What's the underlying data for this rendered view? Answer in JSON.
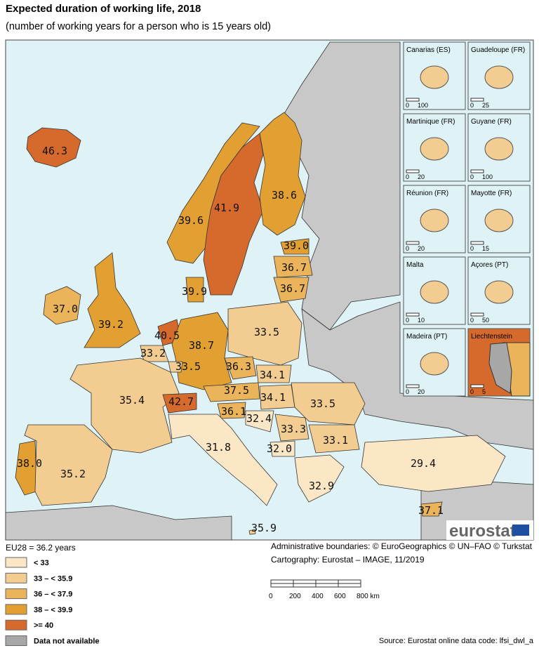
{
  "header": {
    "title": "Expected duration of working life, 2018",
    "subtitle": "(number of working years for a person who is 15 years old)"
  },
  "map": {
    "labels": [
      "46.3",
      "41.9",
      "38.6",
      "39.6",
      "39.0",
      "36.7",
      "36.7",
      "39.9",
      "37.0",
      "39.2",
      "40.5",
      "33.2",
      "38.7",
      "33.5",
      "33.5",
      "36.3",
      "34.1",
      "35.4",
      "42.7",
      "37.5",
      "34.1",
      "33.5",
      "36.1",
      "32.4",
      "33.3",
      "33.1",
      "32.0",
      "31.8",
      "38.0",
      "35.2",
      "29.4",
      "32.9",
      "37.1",
      "35.9"
    ]
  },
  "insets": [
    {
      "name": "Canarias (ES)",
      "scale": [
        "0",
        "100"
      ]
    },
    {
      "name": "Guadeloupe (FR)",
      "scale": [
        "0",
        "25"
      ]
    },
    {
      "name": "Martinique (FR)",
      "scale": [
        "0",
        "20"
      ]
    },
    {
      "name": "Guyane (FR)",
      "scale": [
        "0",
        "100"
      ]
    },
    {
      "name": "Réunion (FR)",
      "scale": [
        "0",
        "20"
      ]
    },
    {
      "name": "Mayotte (FR)",
      "scale": [
        "0",
        "15"
      ]
    },
    {
      "name": "Malta",
      "scale": [
        "0",
        "10"
      ]
    },
    {
      "name": "Açores (PT)",
      "scale": [
        "0",
        "50"
      ]
    },
    {
      "name": "Madeira (PT)",
      "scale": [
        "0",
        "20"
      ]
    },
    {
      "name": "Liechtenstein",
      "scale": [
        "0",
        "5"
      ]
    }
  ],
  "logo": "eurostat",
  "legend": {
    "title": "EU28 = 36.2 years",
    "items": [
      "< 33",
      "33 – < 35.9",
      "36 – < 37.9",
      "38 – < 39.9",
      ">= 40",
      "Data not available"
    ]
  },
  "credits": {
    "boundaries": "Administrative boundaries: © EuroGeographics © UN–FAO © Turkstat",
    "cartography": "Cartography: Eurostat – IMAGE, 11/2019",
    "scalebar": [
      "0",
      "200",
      "400",
      "600",
      "800 km"
    ]
  },
  "source": "Source: Eurostat online data code: lfsi_dwl_a"
}
